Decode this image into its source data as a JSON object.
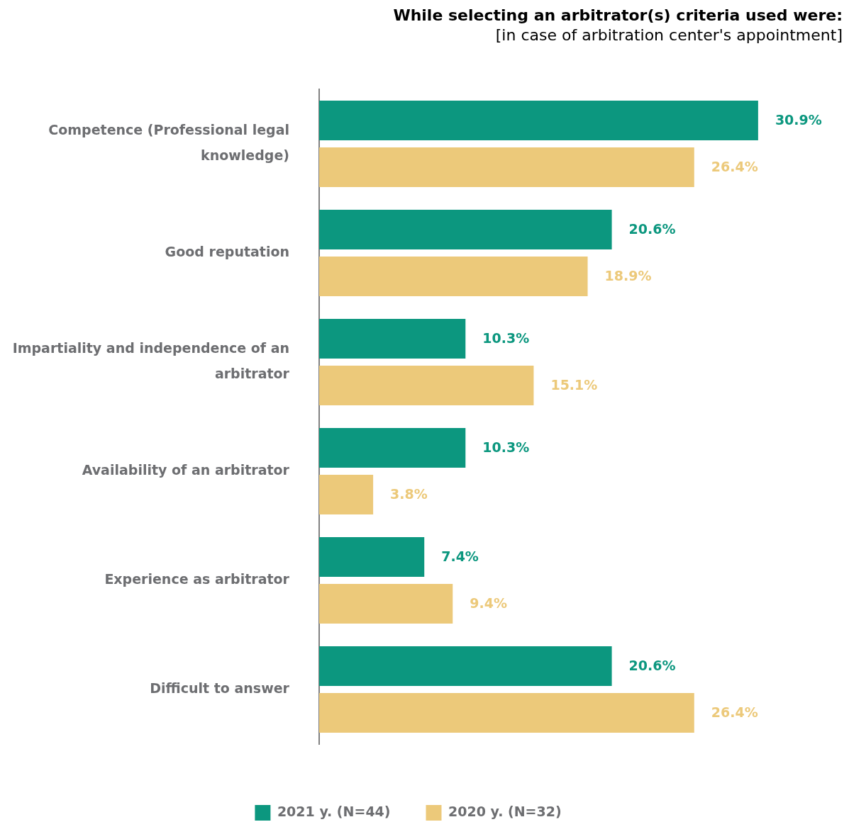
{
  "chart_data": {
    "type": "bar",
    "orientation": "horizontal",
    "title": "While selecting an arbitrator(s) criteria used were:",
    "subtitle": "[in case of arbitration center's appointment]",
    "categories": [
      "Competence (Professional legal knowledge)",
      "Good reputation",
      "Impartiality and independence of an arbitrator",
      "Availability of an arbitrator",
      "Experience as arbitrator",
      "Difficult to answer"
    ],
    "series": [
      {
        "name": "2021 y. (N=44)",
        "color": "#0c977f",
        "values": [
          30.9,
          20.6,
          10.3,
          10.3,
          7.4,
          20.6
        ],
        "value_labels": [
          "30.9%",
          "20.6%",
          "10.3%",
          "10.3%",
          "7.4%",
          "20.6%"
        ]
      },
      {
        "name": "2020 y. (N=32)",
        "color": "#ecc97a",
        "values": [
          26.4,
          18.9,
          15.1,
          3.8,
          9.4,
          26.4
        ],
        "value_labels": [
          "26.4%",
          "18.9%",
          "15.1%",
          "3.8%",
          "9.4%",
          "26.4%"
        ]
      }
    ],
    "legend": "bottom",
    "grid": false,
    "tick_labels": "y"
  }
}
